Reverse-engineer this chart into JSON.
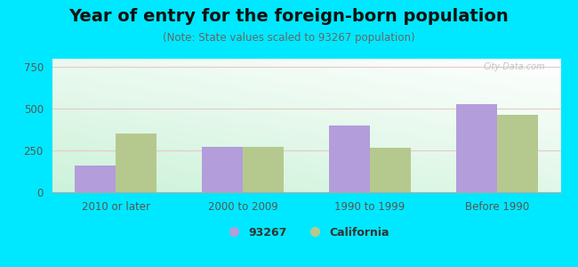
{
  "title": "Year of entry for the foreign-born population",
  "subtitle": "(Note: State values scaled to 93267 population)",
  "categories": [
    "2010 or later",
    "2000 to 2009",
    "1990 to 1999",
    "Before 1990"
  ],
  "values_local": [
    160,
    270,
    400,
    530
  ],
  "values_state": [
    350,
    270,
    265,
    465
  ],
  "bar_color_local": "#b39ddb",
  "bar_color_state": "#b5c98e",
  "background_outer": "#00e8ff",
  "ylim": [
    0,
    800
  ],
  "yticks": [
    0,
    250,
    500,
    750
  ],
  "bar_width": 0.32,
  "legend_label_local": "93267",
  "legend_label_state": "California",
  "watermark": "City-Data.com",
  "grid_color": "#e8c8c8",
  "title_fontsize": 14,
  "subtitle_fontsize": 8.5
}
